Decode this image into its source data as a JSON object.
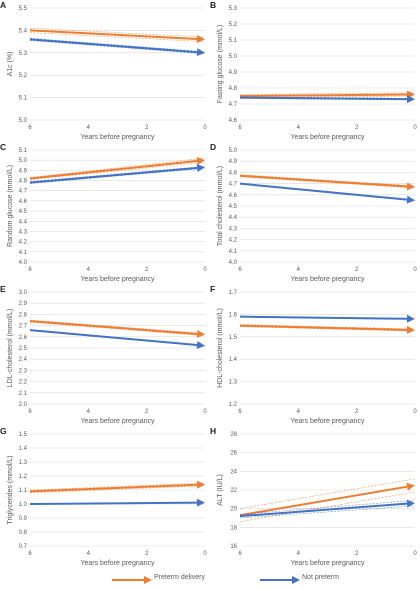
{
  "panels": [
    {
      "letter": "A",
      "ylabel": "A1c (%)",
      "xlabel": "Years before pregnancy",
      "yticks": [
        "5.0",
        "5.1",
        "5.2",
        "5.3",
        "5.4",
        "5.5"
      ],
      "ylim": [
        5.0,
        5.5
      ],
      "xticks": [
        "6",
        "4",
        "2",
        "0"
      ],
      "series": [
        {
          "color": "#ED7D31",
          "ci": true,
          "x": [
            6,
            0
          ],
          "y": [
            5.4,
            5.36
          ],
          "ci_lower": [
            5.39,
            5.35
          ],
          "ci_upper": [
            5.41,
            5.37
          ]
        },
        {
          "color": "#4472C4",
          "ci": true,
          "x": [
            6,
            0
          ],
          "y": [
            5.36,
            5.3
          ],
          "ci_lower": [
            5.355,
            5.295
          ],
          "ci_upper": [
            5.365,
            5.305
          ]
        }
      ]
    },
    {
      "letter": "B",
      "ylabel": "Fasting glucose (mmol/L)",
      "xlabel": "Years before pregnancy",
      "yticks": [
        "4.6",
        "4.7",
        "4.8",
        "4.9",
        "5.0",
        "5.1",
        "5.2",
        "5.3"
      ],
      "ylim": [
        4.6,
        5.3
      ],
      "xticks": [
        "6",
        "4",
        "2",
        "0"
      ],
      "series": [
        {
          "color": "#ED7D31",
          "ci": true,
          "x": [
            6,
            0
          ],
          "y": [
            4.75,
            4.76
          ],
          "ci_lower": [
            4.74,
            4.75
          ],
          "ci_upper": [
            4.76,
            4.77
          ]
        },
        {
          "color": "#4472C4",
          "ci": true,
          "x": [
            6,
            0
          ],
          "y": [
            4.74,
            4.73
          ],
          "ci_lower": [
            4.735,
            4.725
          ],
          "ci_upper": [
            4.745,
            4.735
          ]
        }
      ]
    },
    {
      "letter": "C",
      "ylabel": "Random glucose (mmol/L)",
      "xlabel": "Years before pregnancy",
      "yticks": [
        "4.0",
        "4.1",
        "4.2",
        "4.3",
        "4.4",
        "4.5",
        "4.6",
        "4.7",
        "4.8",
        "4.9",
        "5.0",
        "5.1"
      ],
      "ylim": [
        4.0,
        5.1
      ],
      "xticks": [
        "6",
        "4",
        "2",
        "0"
      ],
      "series": [
        {
          "color": "#ED7D31",
          "ci": true,
          "x": [
            6,
            0
          ],
          "y": [
            4.82,
            5.0
          ],
          "ci_lower": [
            4.81,
            4.98
          ],
          "ci_upper": [
            4.83,
            5.02
          ]
        },
        {
          "color": "#4472C4",
          "ci": true,
          "x": [
            6,
            0
          ],
          "y": [
            4.78,
            4.93
          ],
          "ci_lower": [
            4.77,
            4.92
          ],
          "ci_upper": [
            4.79,
            4.94
          ]
        }
      ]
    },
    {
      "letter": "D",
      "ylabel": "Total cholesterol (mmol/L)",
      "xlabel": "Years before pregnancy",
      "yticks": [
        "4.0",
        "4.1",
        "4.2",
        "4.3",
        "4.4",
        "4.5",
        "4.6",
        "4.7",
        "4.8",
        "4.9",
        "5.0"
      ],
      "ylim": [
        4.0,
        5.0
      ],
      "xticks": [
        "6",
        "4",
        "2",
        "0"
      ],
      "series": [
        {
          "color": "#ED7D31",
          "ci": true,
          "x": [
            6,
            0
          ],
          "y": [
            4.77,
            4.67
          ],
          "ci_lower": [
            4.76,
            4.66
          ],
          "ci_upper": [
            4.78,
            4.68
          ]
        },
        {
          "color": "#4472C4",
          "ci": true,
          "x": [
            6,
            0
          ],
          "y": [
            4.7,
            4.55
          ],
          "ci_lower": [
            4.695,
            4.545
          ],
          "ci_upper": [
            4.705,
            4.555
          ]
        }
      ]
    },
    {
      "letter": "E",
      "ylabel": "LDL-cholesterol (mmol/L)",
      "xlabel": "Years before pregnancy",
      "yticks": [
        "2.0",
        "2.1",
        "2.2",
        "2.3",
        "2.4",
        "2.5",
        "2.6",
        "2.7",
        "2.8",
        "2.9",
        "3.0"
      ],
      "ylim": [
        2.0,
        3.0
      ],
      "xticks": [
        "6",
        "4",
        "2",
        "0"
      ],
      "series": [
        {
          "color": "#ED7D31",
          "ci": true,
          "x": [
            6,
            0
          ],
          "y": [
            2.74,
            2.62
          ],
          "ci_lower": [
            2.73,
            2.61
          ],
          "ci_upper": [
            2.75,
            2.63
          ]
        },
        {
          "color": "#4472C4",
          "ci": true,
          "x": [
            6,
            0
          ],
          "y": [
            2.66,
            2.52
          ],
          "ci_lower": [
            2.655,
            2.515
          ],
          "ci_upper": [
            2.665,
            2.525
          ]
        }
      ]
    },
    {
      "letter": "F",
      "ylabel": "HDL-cholesterol (mmol/L)",
      "xlabel": "Years before pregnancy",
      "yticks": [
        "1.2",
        "1.3",
        "1.4",
        "1.5",
        "1.6",
        "1.7"
      ],
      "ylim": [
        1.2,
        1.7
      ],
      "xticks": [
        "6",
        "4",
        "2",
        "0"
      ],
      "series": [
        {
          "color": "#ED7D31",
          "ci": true,
          "x": [
            6,
            0
          ],
          "y": [
            1.55,
            1.53
          ],
          "ci_lower": [
            1.545,
            1.525
          ],
          "ci_upper": [
            1.555,
            1.535
          ]
        },
        {
          "color": "#4472C4",
          "ci": true,
          "x": [
            6,
            0
          ],
          "y": [
            1.59,
            1.58
          ],
          "ci_lower": [
            1.588,
            1.578
          ],
          "ci_upper": [
            1.592,
            1.582
          ]
        }
      ]
    },
    {
      "letter": "G",
      "ylabel": "Triglycerides (mmol/L)",
      "xlabel": "Years before pregnancy",
      "yticks": [
        "0.7",
        "0.8",
        "0.9",
        "1.0",
        "1.1",
        "1.2",
        "1.3",
        "1.4",
        "1.5"
      ],
      "ylim": [
        0.7,
        1.5
      ],
      "xticks": [
        "6",
        "4",
        "2",
        "0"
      ],
      "series": [
        {
          "color": "#ED7D31",
          "ci": true,
          "x": [
            6,
            0
          ],
          "y": [
            1.09,
            1.14
          ],
          "ci_lower": [
            1.08,
            1.13
          ],
          "ci_upper": [
            1.1,
            1.15
          ]
        },
        {
          "color": "#4472C4",
          "ci": true,
          "x": [
            6,
            0
          ],
          "y": [
            1.0,
            1.01
          ],
          "ci_lower": [
            0.998,
            1.008
          ],
          "ci_upper": [
            1.002,
            1.012
          ]
        }
      ]
    },
    {
      "letter": "H",
      "ylabel": "ALT (IU/L)",
      "xlabel": "Years before pregnancy",
      "yticks": [
        "16",
        "18",
        "20",
        "22",
        "24",
        "26",
        "28"
      ],
      "ylim": [
        16,
        28
      ],
      "xticks": [
        "6",
        "4",
        "2",
        "0"
      ],
      "series": [
        {
          "color": "#ED7D31",
          "ci": true,
          "x": [
            6,
            0
          ],
          "y": [
            19.3,
            22.5
          ],
          "ci_lower": [
            18.6,
            21.8
          ],
          "ci_upper": [
            20.0,
            23.2
          ]
        },
        {
          "color": "#4472C4",
          "ci": true,
          "x": [
            6,
            0
          ],
          "y": [
            19.2,
            20.6
          ],
          "ci_lower": [
            19.0,
            20.3
          ],
          "ci_upper": [
            19.4,
            20.9
          ]
        }
      ]
    }
  ],
  "legend": [
    {
      "label": "Preterm delivery",
      "color": "#ED7D31"
    },
    {
      "label": "Not preterm",
      "color": "#4472C4"
    }
  ],
  "chart_data": [
    {
      "type": "line",
      "title": "A",
      "xlabel": "Years before pregnancy",
      "ylabel": "A1c (%)",
      "ylim": [
        5.0,
        5.5
      ],
      "xlim": [
        6,
        0
      ],
      "x": [
        6,
        0
      ],
      "series": [
        {
          "name": "Preterm delivery",
          "values": [
            5.4,
            5.36
          ]
        },
        {
          "name": "Not preterm",
          "values": [
            5.36,
            5.3
          ]
        }
      ]
    },
    {
      "type": "line",
      "title": "B",
      "xlabel": "Years before pregnancy",
      "ylabel": "Fasting glucose (mmol/L)",
      "ylim": [
        4.6,
        5.3
      ],
      "xlim": [
        6,
        0
      ],
      "x": [
        6,
        0
      ],
      "series": [
        {
          "name": "Preterm delivery",
          "values": [
            4.75,
            4.76
          ]
        },
        {
          "name": "Not preterm",
          "values": [
            4.74,
            4.73
          ]
        }
      ]
    },
    {
      "type": "line",
      "title": "C",
      "xlabel": "Years before pregnancy",
      "ylabel": "Random glucose (mmol/L)",
      "ylim": [
        4.0,
        5.1
      ],
      "xlim": [
        6,
        0
      ],
      "x": [
        6,
        0
      ],
      "series": [
        {
          "name": "Preterm delivery",
          "values": [
            4.82,
            5.0
          ]
        },
        {
          "name": "Not preterm",
          "values": [
            4.78,
            4.93
          ]
        }
      ]
    },
    {
      "type": "line",
      "title": "D",
      "xlabel": "Years before pregnancy",
      "ylabel": "Total cholesterol (mmol/L)",
      "ylim": [
        4.0,
        5.0
      ],
      "xlim": [
        6,
        0
      ],
      "x": [
        6,
        0
      ],
      "series": [
        {
          "name": "Preterm delivery",
          "values": [
            4.77,
            4.67
          ]
        },
        {
          "name": "Not preterm",
          "values": [
            4.7,
            4.55
          ]
        }
      ]
    },
    {
      "type": "line",
      "title": "E",
      "xlabel": "Years before pregnancy",
      "ylabel": "LDL-cholesterol (mmol/L)",
      "ylim": [
        2.0,
        3.0
      ],
      "xlim": [
        6,
        0
      ],
      "x": [
        6,
        0
      ],
      "series": [
        {
          "name": "Preterm delivery",
          "values": [
            2.74,
            2.62
          ]
        },
        {
          "name": "Not preterm",
          "values": [
            2.66,
            2.52
          ]
        }
      ]
    },
    {
      "type": "line",
      "title": "F",
      "xlabel": "Years before pregnancy",
      "ylabel": "HDL-cholesterol (mmol/L)",
      "ylim": [
        1.2,
        1.7
      ],
      "xlim": [
        6,
        0
      ],
      "x": [
        6,
        0
      ],
      "series": [
        {
          "name": "Preterm delivery",
          "values": [
            1.55,
            1.53
          ]
        },
        {
          "name": "Not preterm",
          "values": [
            1.59,
            1.58
          ]
        }
      ]
    },
    {
      "type": "line",
      "title": "G",
      "xlabel": "Years before pregnancy",
      "ylabel": "Triglycerides (mmol/L)",
      "ylim": [
        0.7,
        1.5
      ],
      "xlim": [
        6,
        0
      ],
      "x": [
        6,
        0
      ],
      "series": [
        {
          "name": "Preterm delivery",
          "values": [
            1.09,
            1.14
          ]
        },
        {
          "name": "Not preterm",
          "values": [
            1.0,
            1.01
          ]
        }
      ]
    },
    {
      "type": "line",
      "title": "H",
      "xlabel": "Years before pregnancy",
      "ylabel": "ALT (IU/L)",
      "ylim": [
        16,
        28
      ],
      "xlim": [
        6,
        0
      ],
      "x": [
        6,
        0
      ],
      "series": [
        {
          "name": "Preterm delivery",
          "values": [
            19.3,
            22.5
          ]
        },
        {
          "name": "Not preterm",
          "values": [
            19.2,
            20.6
          ]
        }
      ]
    }
  ]
}
